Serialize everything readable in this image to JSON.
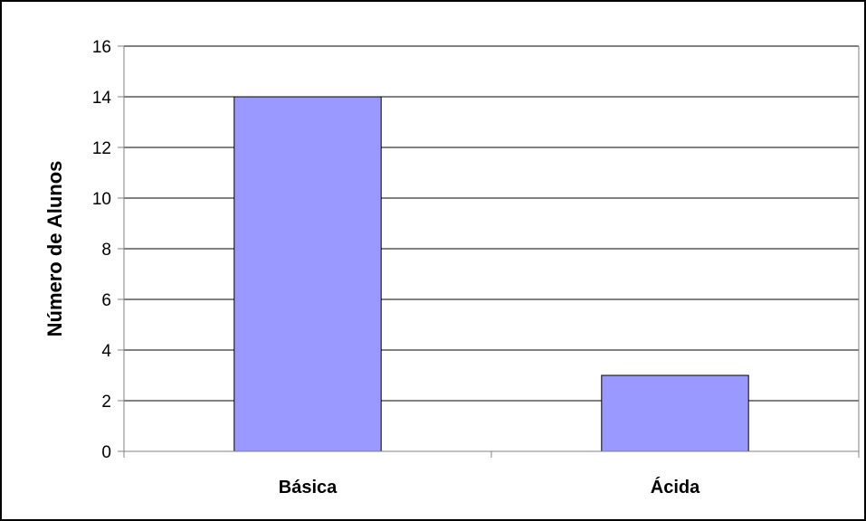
{
  "chart_data": {
    "type": "bar",
    "title": "",
    "xlabel": "",
    "ylabel": "Número de Alunos",
    "categories": [
      "Básica",
      "Ácida"
    ],
    "values": [
      14,
      3
    ],
    "ylim": [
      0,
      16
    ],
    "yticks": [
      0,
      2,
      4,
      6,
      8,
      10,
      12,
      14,
      16
    ],
    "grid": true,
    "legend": false,
    "colors": {
      "bar_fill": "#9999ff",
      "bar_stroke": "#000000",
      "grid": "#000000",
      "axis": "#808080",
      "frame": "#000000"
    }
  }
}
